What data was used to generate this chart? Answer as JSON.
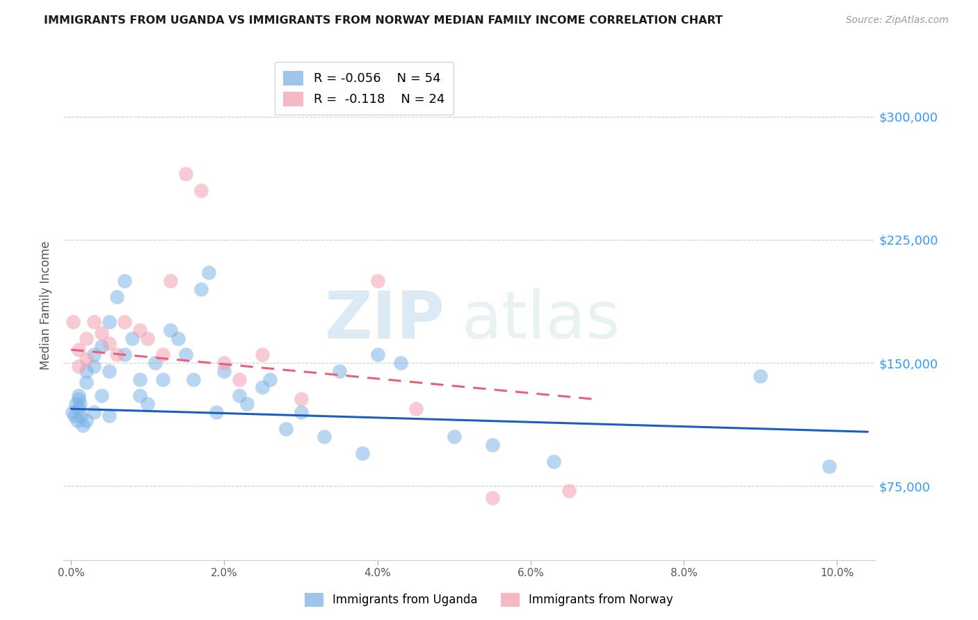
{
  "title": "IMMIGRANTS FROM UGANDA VS IMMIGRANTS FROM NORWAY MEDIAN FAMILY INCOME CORRELATION CHART",
  "source": "Source: ZipAtlas.com",
  "ylabel": "Median Family Income",
  "xlabel_ticks": [
    "0.0%",
    "2.0%",
    "4.0%",
    "6.0%",
    "8.0%",
    "10.0%"
  ],
  "xlabel_vals": [
    0.0,
    0.02,
    0.04,
    0.06,
    0.08,
    0.1
  ],
  "ytick_labels": [
    "$75,000",
    "$150,000",
    "$225,000",
    "$300,000"
  ],
  "ytick_vals": [
    75000,
    150000,
    225000,
    300000
  ],
  "xlim": [
    -0.001,
    0.105
  ],
  "ylim": [
    30000,
    340000
  ],
  "uganda_color": "#7EB3E8",
  "norway_color": "#F4A0B0",
  "uganda_line_color": "#1A5FBF",
  "norway_line_color": "#E8607A",
  "legend_r_uganda": "R = -0.056",
  "legend_n_uganda": "N = 54",
  "legend_r_norway": "R =  -0.118",
  "legend_n_norway": "N = 24",
  "watermark_zip": "ZIP",
  "watermark_atlas": "atlas",
  "uganda_line_x": [
    0.0,
    0.104
  ],
  "uganda_line_y": [
    122000,
    108000
  ],
  "norway_line_x": [
    0.0,
    0.068
  ],
  "norway_line_y": [
    158000,
    128000
  ],
  "uganda_x": [
    0.0002,
    0.0004,
    0.0006,
    0.0008,
    0.001,
    0.001,
    0.001,
    0.0012,
    0.0013,
    0.0015,
    0.002,
    0.002,
    0.002,
    0.003,
    0.003,
    0.003,
    0.004,
    0.004,
    0.005,
    0.005,
    0.005,
    0.006,
    0.007,
    0.007,
    0.008,
    0.009,
    0.009,
    0.01,
    0.011,
    0.012,
    0.013,
    0.014,
    0.015,
    0.016,
    0.017,
    0.018,
    0.019,
    0.02,
    0.022,
    0.023,
    0.025,
    0.026,
    0.028,
    0.03,
    0.033,
    0.035,
    0.038,
    0.04,
    0.043,
    0.05,
    0.055,
    0.063,
    0.09,
    0.099
  ],
  "uganda_y": [
    120000,
    118000,
    125000,
    115000,
    130000,
    122000,
    128000,
    125000,
    118000,
    112000,
    145000,
    138000,
    115000,
    155000,
    148000,
    120000,
    160000,
    130000,
    175000,
    145000,
    118000,
    190000,
    200000,
    155000,
    165000,
    130000,
    140000,
    125000,
    150000,
    140000,
    170000,
    165000,
    155000,
    140000,
    195000,
    205000,
    120000,
    145000,
    130000,
    125000,
    135000,
    140000,
    110000,
    120000,
    105000,
    145000,
    95000,
    155000,
    150000,
    105000,
    100000,
    90000,
    142000,
    87000
  ],
  "norway_x": [
    0.0003,
    0.001,
    0.001,
    0.002,
    0.002,
    0.003,
    0.004,
    0.005,
    0.006,
    0.007,
    0.009,
    0.01,
    0.012,
    0.013,
    0.015,
    0.017,
    0.02,
    0.022,
    0.025,
    0.03,
    0.04,
    0.045,
    0.055,
    0.065
  ],
  "norway_y": [
    175000,
    158000,
    148000,
    165000,
    152000,
    175000,
    168000,
    162000,
    155000,
    175000,
    170000,
    165000,
    155000,
    200000,
    265000,
    255000,
    150000,
    140000,
    155000,
    128000,
    200000,
    122000,
    68000,
    72000
  ]
}
